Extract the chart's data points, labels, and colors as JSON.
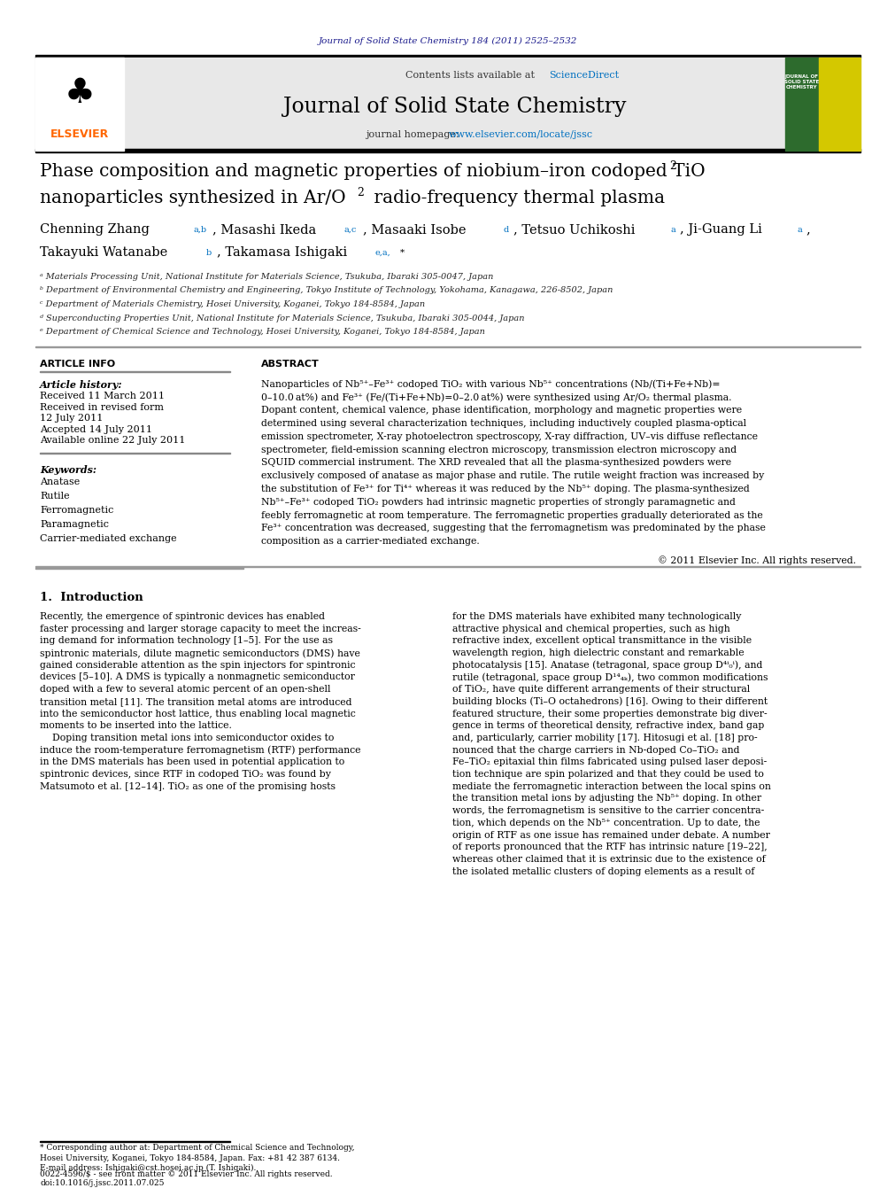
{
  "page_width": 9.92,
  "page_height": 13.23,
  "bg_color": "#ffffff",
  "journal_ref_text": "Journal of Solid State Chemistry 184 (2011) 2525–2532",
  "journal_ref_color": "#1a1a8c",
  "header_bg": "#e8e8e8",
  "journal_name": "Journal of Solid State Chemistry",
  "contents_text": "Contents lists available at ",
  "sciencedirect_text": "ScienceDirect",
  "sciencedirect_color": "#0070c0",
  "homepage_text": "journal homepage: ",
  "homepage_url": "www.elsevier.com/locate/jssc",
  "homepage_url_color": "#0070c0",
  "elsevier_color": "#ff6600",
  "affil_a": "ᵃ Materials Processing Unit, National Institute for Materials Science, Tsukuba, Ibaraki 305-0047, Japan",
  "affil_b": "ᵇ Department of Environmental Chemistry and Engineering, Tokyo Institute of Technology, Yokohama, Kanagawa, 226-8502, Japan",
  "affil_c": "ᶜ Department of Materials Chemistry, Hosei University, Koganei, Tokyo 184-8584, Japan",
  "affil_d": "ᵈ Superconducting Properties Unit, National Institute for Materials Science, Tsukuba, Ibaraki 305-0044, Japan",
  "affil_e": "ᵉ Department of Chemical Science and Technology, Hosei University, Koganei, Tokyo 184-8584, Japan",
  "article_info_title": "ARTICLE INFO",
  "abstract_title": "ABSTRACT",
  "article_history_label": "Article history:",
  "received1": "Received 11 March 2011",
  "revised": "Received in revised form",
  "revised2": "12 July 2011",
  "accepted": "Accepted 14 July 2011",
  "available": "Available online 22 July 2011",
  "keywords_label": "Keywords:",
  "kw1": "Anatase",
  "kw2": "Rutile",
  "kw3": "Ferromagnetic",
  "kw4": "Paramagnetic",
  "kw5": "Carrier-mediated exchange",
  "abstract_text": "Nanoparticles of Nb⁵⁺–Fe³⁺ codoped TiO₂ with various Nb⁵⁺ concentrations (Nb/(Ti+Fe+Nb)=\n0–10.0 at%) and Fe³⁺ (Fe/(Ti+Fe+Nb)=0–2.0 at%) were synthesized using Ar/O₂ thermal plasma.\nDopant content, chemical valence, phase identification, morphology and magnetic properties were\ndetermined using several characterization techniques, including inductively coupled plasma-optical\nemission spectrometer, X-ray photoelectron spectroscopy, X-ray diffraction, UV–vis diffuse reflectance\nspectrometer, field-emission scanning electron microscopy, transmission electron microscopy and\nSQUID commercial instrument. The XRD revealed that all the plasma-synthesized powders were\nexclusively composed of anatase as major phase and rutile. The rutile weight fraction was increased by\nthe substitution of Fe³⁺ for Ti⁴⁺ whereas it was reduced by the Nb⁵⁺ doping. The plasma-synthesized\nNb⁵⁺–Fe³⁺ codoped TiO₂ powders had intrinsic magnetic properties of strongly paramagnetic and\nfeebly ferromagnetic at room temperature. The ferromagnetic properties gradually deteriorated as the\nFe³⁺ concentration was decreased, suggesting that the ferromagnetism was predominated by the phase\ncomposition as a carrier-mediated exchange.",
  "copyright_text": "© 2011 Elsevier Inc. All rights reserved.",
  "intro_title": "1.  Introduction",
  "intro_col1": "Recently, the emergence of spintronic devices has enabled\nfaster processing and larger storage capacity to meet the increas-\ning demand for information technology [1–5]. For the use as\nspintronic materials, dilute magnetic semiconductors (DMS) have\ngained considerable attention as the spin injectors for spintronic\ndevices [5–10]. A DMS is typically a nonmagnetic semiconductor\ndoped with a few to several atomic percent of an open-shell\ntransition metal [11]. The transition metal atoms are introduced\ninto the semiconductor host lattice, thus enabling local magnetic\nmoments to be inserted into the lattice.\n    Doping transition metal ions into semiconductor oxides to\ninduce the room-temperature ferromagnetism (RTF) performance\nin the DMS materials has been used in potential application to\nspintronic devices, since RTF in codoped TiO₂ was found by\nMatsumoto et al. [12–14]. TiO₂ as one of the promising hosts",
  "intro_col2": "for the DMS materials have exhibited many technologically\nattractive physical and chemical properties, such as high\nrefractive index, excellent optical transmittance in the visible\nwavelength region, high dielectric constant and remarkable\nphotocatalysis [15]. Anatase (tetragonal, space group D⁴ⁱ₀ⁱ), and\nrutile (tetragonal, space group D¹⁴₄ₖ), two common modifications\nof TiO₂, have quite different arrangements of their structural\nbuilding blocks (Ti–O octahedrons) [16]. Owing to their different\nfeatured structure, their some properties demonstrate big diver-\ngence in terms of theoretical density, refractive index, band gap\nand, particularly, carrier mobility [17]. Hitosugi et al. [18] pro-\nnounced that the charge carriers in Nb-doped Co–TiO₂ and\nFe–TiO₂ epitaxial thin films fabricated using pulsed laser deposi-\ntion technique are spin polarized and that they could be used to\nmediate the ferromagnetic interaction between the local spins on\nthe transition metal ions by adjusting the Nb⁵⁺ doping. In other\nwords, the ferromagnetism is sensitive to the carrier concentra-\ntion, which depends on the Nb⁵⁺ concentration. Up to date, the\norigin of RTF as one issue has remained under debate. A number\nof reports pronounced that the RTF has intrinsic nature [19–22],\nwhereas other claimed that it is extrinsic due to the existence of\nthe isolated metallic clusters of doping elements as a result of",
  "footnote_text": "* Corresponding author at: Department of Chemical Science and Technology,\nHosei University, Koganei, Tokyo 184-8584, Japan. Fax: +81 42 387 6134.\nE-mail address: Ishigaki@cst.hosei.ac.jp (T. Ishigaki).",
  "bottom_text": "0022-4596/$ - see front matter © 2011 Elsevier Inc. All rights reserved.\ndoi:10.1016/j.jssc.2011.07.025"
}
